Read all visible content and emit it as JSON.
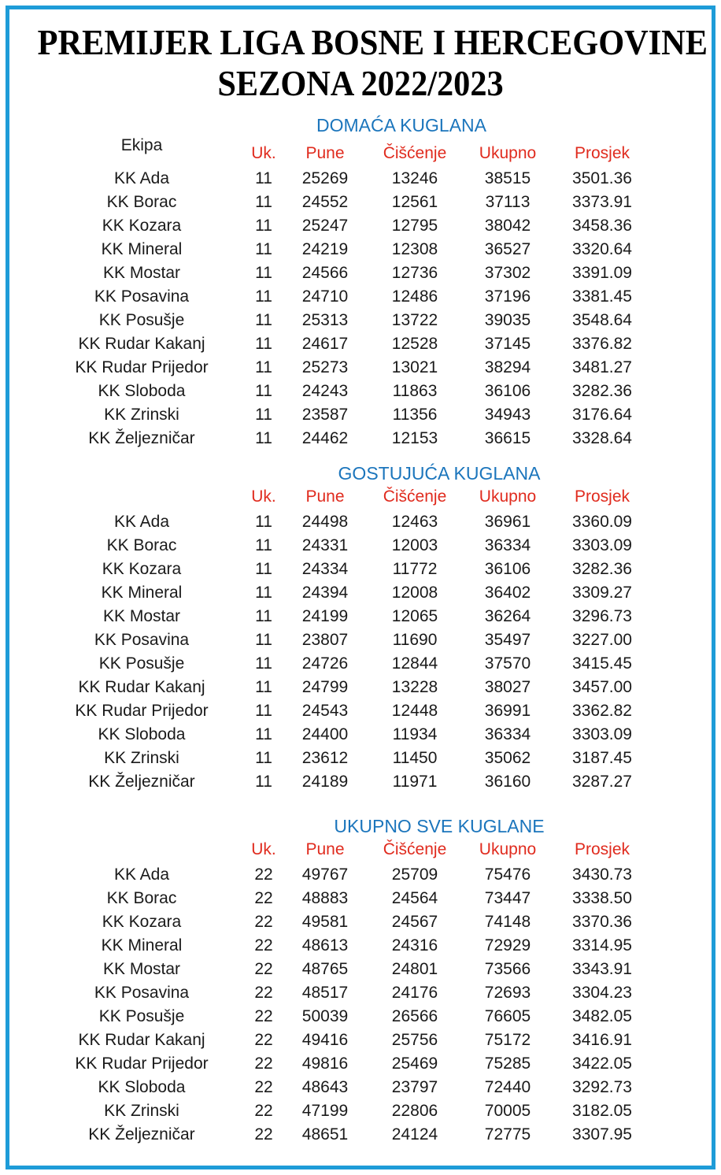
{
  "title": {
    "line1": "PREMIJER LIGA BOSNE I HERCEGOVINE",
    "line2": "SEZONA 2022/2023"
  },
  "columns": {
    "team": "Ekipa",
    "uk": "Uk.",
    "pune": "Pune",
    "ciscenje": "Čišćenje",
    "ukupno": "Ukupno",
    "prosjek": "Prosjek"
  },
  "colors": {
    "border_blue": "#1e9cd8",
    "section_header_blue": "#1b75bc",
    "column_header_red": "#e02b1e",
    "text_black": "#1a1a1a"
  },
  "sections": [
    {
      "header": "DOMAĆA KUGLANA",
      "rows": [
        {
          "team": "KK Ada",
          "uk": "11",
          "pune": "25269",
          "ciscenje": "13246",
          "ukupno": "38515",
          "prosjek": "3501.36"
        },
        {
          "team": "KK Borac",
          "uk": "11",
          "pune": "24552",
          "ciscenje": "12561",
          "ukupno": "37113",
          "prosjek": "3373.91"
        },
        {
          "team": "KK Kozara",
          "uk": "11",
          "pune": "25247",
          "ciscenje": "12795",
          "ukupno": "38042",
          "prosjek": "3458.36"
        },
        {
          "team": "KK Mineral",
          "uk": "11",
          "pune": "24219",
          "ciscenje": "12308",
          "ukupno": "36527",
          "prosjek": "3320.64"
        },
        {
          "team": "KK Mostar",
          "uk": "11",
          "pune": "24566",
          "ciscenje": "12736",
          "ukupno": "37302",
          "prosjek": "3391.09"
        },
        {
          "team": "KK Posavina",
          "uk": "11",
          "pune": "24710",
          "ciscenje": "12486",
          "ukupno": "37196",
          "prosjek": "3381.45"
        },
        {
          "team": "KK Posušje",
          "uk": "11",
          "pune": "25313",
          "ciscenje": "13722",
          "ukupno": "39035",
          "prosjek": "3548.64"
        },
        {
          "team": "KK Rudar Kakanj",
          "uk": "11",
          "pune": "24617",
          "ciscenje": "12528",
          "ukupno": "37145",
          "prosjek": "3376.82"
        },
        {
          "team": "KK Rudar Prijedor",
          "uk": "11",
          "pune": "25273",
          "ciscenje": "13021",
          "ukupno": "38294",
          "prosjek": "3481.27"
        },
        {
          "team": "KK Sloboda",
          "uk": "11",
          "pune": "24243",
          "ciscenje": "11863",
          "ukupno": "36106",
          "prosjek": "3282.36"
        },
        {
          "team": "KK Zrinski",
          "uk": "11",
          "pune": "23587",
          "ciscenje": "11356",
          "ukupno": "34943",
          "prosjek": "3176.64"
        },
        {
          "team": "KK Željezničar",
          "uk": "11",
          "pune": "24462",
          "ciscenje": "12153",
          "ukupno": "36615",
          "prosjek": "3328.64"
        }
      ]
    },
    {
      "header": "GOSTUJUĆA KUGLANA",
      "rows": [
        {
          "team": "KK Ada",
          "uk": "11",
          "pune": "24498",
          "ciscenje": "12463",
          "ukupno": "36961",
          "prosjek": "3360.09"
        },
        {
          "team": "KK Borac",
          "uk": "11",
          "pune": "24331",
          "ciscenje": "12003",
          "ukupno": "36334",
          "prosjek": "3303.09"
        },
        {
          "team": "KK Kozara",
          "uk": "11",
          "pune": "24334",
          "ciscenje": "11772",
          "ukupno": "36106",
          "prosjek": "3282.36"
        },
        {
          "team": "KK Mineral",
          "uk": "11",
          "pune": "24394",
          "ciscenje": "12008",
          "ukupno": "36402",
          "prosjek": "3309.27"
        },
        {
          "team": "KK Mostar",
          "uk": "11",
          "pune": "24199",
          "ciscenje": "12065",
          "ukupno": "36264",
          "prosjek": "3296.73"
        },
        {
          "team": "KK Posavina",
          "uk": "11",
          "pune": "23807",
          "ciscenje": "11690",
          "ukupno": "35497",
          "prosjek": "3227.00"
        },
        {
          "team": "KK Posušje",
          "uk": "11",
          "pune": "24726",
          "ciscenje": "12844",
          "ukupno": "37570",
          "prosjek": "3415.45"
        },
        {
          "team": "KK Rudar Kakanj",
          "uk": "11",
          "pune": "24799",
          "ciscenje": "13228",
          "ukupno": "38027",
          "prosjek": "3457.00"
        },
        {
          "team": "KK Rudar Prijedor",
          "uk": "11",
          "pune": "24543",
          "ciscenje": "12448",
          "ukupno": "36991",
          "prosjek": "3362.82"
        },
        {
          "team": "KK Sloboda",
          "uk": "11",
          "pune": "24400",
          "ciscenje": "11934",
          "ukupno": "36334",
          "prosjek": "3303.09"
        },
        {
          "team": "KK Zrinski",
          "uk": "11",
          "pune": "23612",
          "ciscenje": "11450",
          "ukupno": "35062",
          "prosjek": "3187.45"
        },
        {
          "team": "KK Željezničar",
          "uk": "11",
          "pune": "24189",
          "ciscenje": "11971",
          "ukupno": "36160",
          "prosjek": "3287.27"
        }
      ]
    },
    {
      "header": "UKUPNO SVE KUGLANE",
      "rows": [
        {
          "team": "KK Ada",
          "uk": "22",
          "pune": "49767",
          "ciscenje": "25709",
          "ukupno": "75476",
          "prosjek": "3430.73"
        },
        {
          "team": "KK Borac",
          "uk": "22",
          "pune": "48883",
          "ciscenje": "24564",
          "ukupno": "73447",
          "prosjek": "3338.50"
        },
        {
          "team": "KK Kozara",
          "uk": "22",
          "pune": "49581",
          "ciscenje": "24567",
          "ukupno": "74148",
          "prosjek": "3370.36"
        },
        {
          "team": "KK Mineral",
          "uk": "22",
          "pune": "48613",
          "ciscenje": "24316",
          "ukupno": "72929",
          "prosjek": "3314.95"
        },
        {
          "team": "KK Mostar",
          "uk": "22",
          "pune": "48765",
          "ciscenje": "24801",
          "ukupno": "73566",
          "prosjek": "3343.91"
        },
        {
          "team": "KK Posavina",
          "uk": "22",
          "pune": "48517",
          "ciscenje": "24176",
          "ukupno": "72693",
          "prosjek": "3304.23"
        },
        {
          "team": "KK Posušje",
          "uk": "22",
          "pune": "50039",
          "ciscenje": "26566",
          "ukupno": "76605",
          "prosjek": "3482.05"
        },
        {
          "team": "KK Rudar Kakanj",
          "uk": "22",
          "pune": "49416",
          "ciscenje": "25756",
          "ukupno": "75172",
          "prosjek": "3416.91"
        },
        {
          "team": "KK Rudar Prijedor",
          "uk": "22",
          "pune": "49816",
          "ciscenje": "25469",
          "ukupno": "75285",
          "prosjek": "3422.05"
        },
        {
          "team": "KK Sloboda",
          "uk": "22",
          "pune": "48643",
          "ciscenje": "23797",
          "ukupno": "72440",
          "prosjek": "3292.73"
        },
        {
          "team": "KK Zrinski",
          "uk": "22",
          "pune": "47199",
          "ciscenje": "22806",
          "ukupno": "70005",
          "prosjek": "3182.05"
        },
        {
          "team": "KK Željezničar",
          "uk": "22",
          "pune": "48651",
          "ciscenje": "24124",
          "ukupno": "72775",
          "prosjek": "3307.95"
        }
      ]
    }
  ]
}
